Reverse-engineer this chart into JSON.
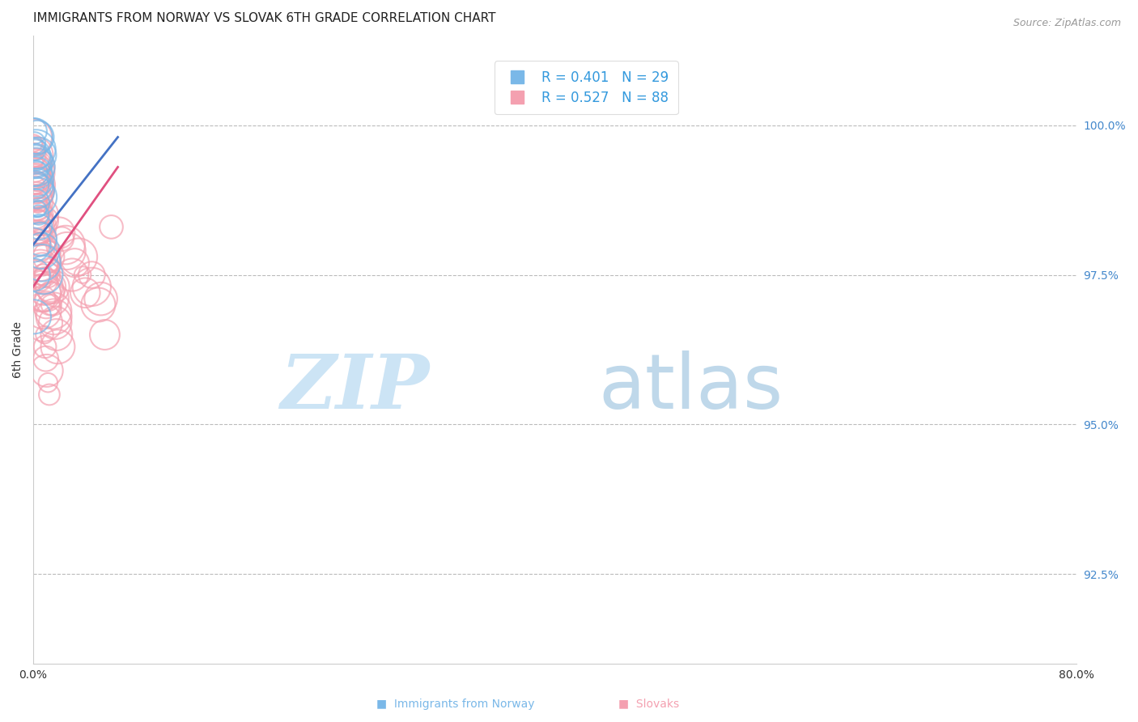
{
  "title": "IMMIGRANTS FROM NORWAY VS SLOVAK 6TH GRADE CORRELATION CHART",
  "source": "Source: ZipAtlas.com",
  "ylabel": "6th Grade",
  "xlim": [
    0.0,
    80.0
  ],
  "ylim": [
    91.0,
    101.5
  ],
  "norway_R": 0.401,
  "norway_N": 29,
  "slovak_R": 0.527,
  "slovak_N": 88,
  "norway_color": "#7ab8e8",
  "slovak_color": "#f4a0b0",
  "norway_line_color": "#4472c4",
  "slovak_line_color": "#e05080",
  "background_color": "#ffffff",
  "grid_color": "#bbbbbb",
  "norway_x": [
    0.06,
    0.08,
    0.1,
    0.12,
    0.14,
    0.18,
    0.2,
    0.22,
    0.25,
    0.28,
    0.3,
    0.35,
    0.4,
    0.45,
    0.5,
    0.55,
    0.65,
    0.7,
    0.8,
    0.03,
    0.05,
    0.07,
    0.09,
    0.13,
    0.16,
    0.19,
    0.24,
    0.32,
    0.42
  ],
  "norway_y": [
    99.8,
    99.9,
    99.7,
    99.6,
    99.5,
    99.4,
    99.3,
    99.2,
    99.1,
    99.0,
    98.9,
    98.8,
    98.6,
    98.5,
    98.3,
    98.1,
    97.9,
    97.7,
    97.5,
    98.0,
    97.5,
    96.8,
    99.0,
    99.2,
    98.7,
    99.4,
    99.6,
    99.8,
    99.5
  ],
  "slovak_x": [
    0.04,
    0.06,
    0.08,
    0.1,
    0.12,
    0.14,
    0.16,
    0.18,
    0.2,
    0.22,
    0.25,
    0.28,
    0.3,
    0.32,
    0.35,
    0.38,
    0.4,
    0.42,
    0.45,
    0.48,
    0.5,
    0.55,
    0.58,
    0.6,
    0.65,
    0.7,
    0.75,
    0.8,
    0.85,
    0.9,
    0.95,
    1.0,
    1.1,
    1.2,
    1.3,
    1.4,
    1.5,
    1.6,
    2.0,
    2.5,
    3.0,
    3.5,
    4.0,
    4.5,
    5.0,
    5.5,
    6.0,
    0.07,
    0.09,
    0.11,
    0.13,
    0.15,
    0.17,
    0.19,
    0.21,
    0.24,
    0.27,
    0.31,
    0.34,
    0.37,
    0.41,
    0.44,
    0.47,
    0.52,
    0.56,
    0.62,
    0.68,
    0.72,
    0.78,
    0.82,
    0.88,
    0.92,
    0.98,
    1.05,
    1.15,
    1.25,
    1.35,
    1.45,
    1.55,
    1.7,
    1.8,
    1.9,
    2.2,
    2.6,
    3.2,
    3.8,
    4.5,
    5.2
  ],
  "slovak_y": [
    99.6,
    99.7,
    99.8,
    99.5,
    99.4,
    99.3,
    99.2,
    99.1,
    99.0,
    99.3,
    98.9,
    99.2,
    98.8,
    99.0,
    98.7,
    98.6,
    99.1,
    98.5,
    98.4,
    98.3,
    98.2,
    98.0,
    97.9,
    98.5,
    97.8,
    97.6,
    97.5,
    98.4,
    97.4,
    97.3,
    97.2,
    97.0,
    97.5,
    97.8,
    97.2,
    97.0,
    97.3,
    96.8,
    98.2,
    98.0,
    97.5,
    97.8,
    97.2,
    97.5,
    97.0,
    96.5,
    98.3,
    99.5,
    99.3,
    99.1,
    99.0,
    98.9,
    99.2,
    98.8,
    98.7,
    98.5,
    98.6,
    98.4,
    99.0,
    98.3,
    98.2,
    98.1,
    97.9,
    97.7,
    97.6,
    97.4,
    97.2,
    97.1,
    96.9,
    96.7,
    96.5,
    96.3,
    96.1,
    95.9,
    95.7,
    95.5,
    97.3,
    97.1,
    96.9,
    96.7,
    96.5,
    96.3,
    98.1,
    97.9,
    97.7,
    97.5,
    97.3,
    97.1
  ],
  "norway_trend_x": [
    0.0,
    6.5
  ],
  "norway_trend_y": [
    98.0,
    99.8
  ],
  "slovak_trend_x": [
    0.0,
    6.5
  ],
  "slovak_trend_y": [
    97.3,
    99.3
  ],
  "yticks": [
    91.0,
    92.5,
    95.0,
    97.5,
    100.0
  ],
  "ytick_labels": [
    "",
    "92.5%",
    "95.0%",
    "97.5%",
    "100.0%"
  ],
  "title_fontsize": 11,
  "axis_label_fontsize": 10,
  "tick_fontsize": 10,
  "legend_fontsize": 12,
  "watermark_color": "#cce4f5",
  "watermark_color2": "#b8d4e8"
}
